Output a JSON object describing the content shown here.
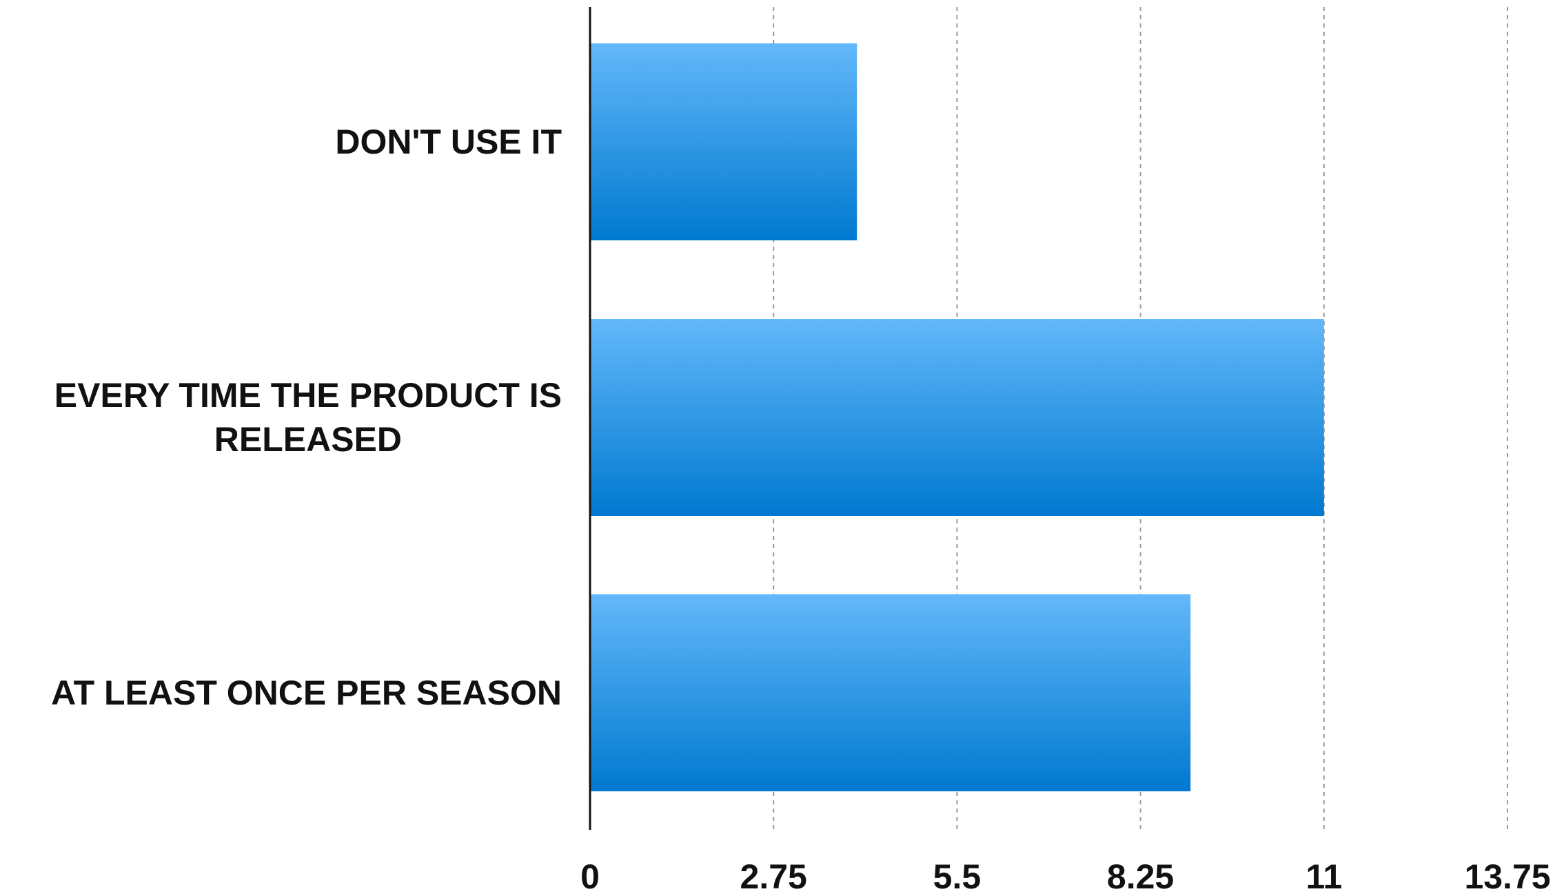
{
  "chart_data": {
    "type": "bar",
    "orientation": "horizontal",
    "categories": [
      "DON'T USE IT",
      "EVERY TIME THE PRODUCT IS RELEASED",
      "AT LEAST ONCE PER SEASON"
    ],
    "category_lines": [
      [
        "DON'T USE IT"
      ],
      [
        "EVERY TIME THE PRODUCT IS",
        "RELEASED"
      ],
      [
        "AT LEAST ONCE PER SEASON"
      ]
    ],
    "values": [
      4,
      11,
      9
    ],
    "xlim": [
      0,
      13.75
    ],
    "ticks": [
      "0",
      "2.75",
      "5.5",
      "8.25",
      "11",
      "13.75"
    ],
    "tick_values": [
      0,
      2.75,
      5.5,
      8.25,
      11,
      13.75
    ],
    "title": "",
    "xlabel": "",
    "ylabel": "",
    "grid": true,
    "legend": "none",
    "colors": {
      "bar_top": "#63b8fa",
      "bar_bottom": "#0079d0",
      "axis": "#111111",
      "grid": "#9a9a9a",
      "text": "#111111"
    }
  }
}
